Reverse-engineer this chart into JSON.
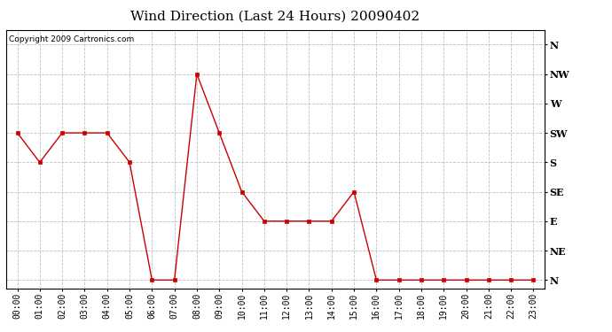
{
  "title": "Wind Direction (Last 24 Hours) 20090402",
  "copyright": "Copyright 2009 Cartronics.com",
  "hours": [
    "00:00",
    "01:00",
    "02:00",
    "03:00",
    "04:00",
    "05:00",
    "06:00",
    "07:00",
    "08:00",
    "09:00",
    "10:00",
    "11:00",
    "12:00",
    "13:00",
    "14:00",
    "15:00",
    "16:00",
    "17:00",
    "18:00",
    "19:00",
    "20:00",
    "21:00",
    "22:00",
    "23:00"
  ],
  "x_values": [
    0,
    1,
    2,
    3,
    4,
    5,
    6,
    7,
    8,
    9,
    10,
    11,
    12,
    13,
    14,
    15,
    16,
    17,
    18,
    19,
    20,
    21,
    22,
    23
  ],
  "y_values": [
    5,
    4,
    5,
    5,
    5,
    4,
    0,
    0,
    7,
    5,
    3,
    2,
    2,
    2,
    2,
    3,
    0,
    0,
    0,
    0,
    0,
    0,
    0,
    0
  ],
  "ytick_labels": [
    "N",
    "NE",
    "E",
    "SE",
    "S",
    "SW",
    "W",
    "NW",
    "N"
  ],
  "ytick_values": [
    0,
    1,
    2,
    3,
    4,
    5,
    6,
    7,
    8
  ],
  "line_color": "#cc0000",
  "marker": "s",
  "marker_size": 3,
  "grid_color": "#c0c0c0",
  "grid_style": "--",
  "bg_color": "#ffffff",
  "plot_bg": "#ffffff",
  "title_fontsize": 11,
  "copyright_fontsize": 6.5,
  "tick_fontsize": 7,
  "ytick_fontsize": 8
}
